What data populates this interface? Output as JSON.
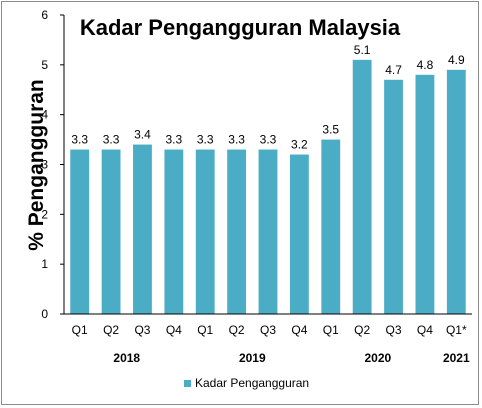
{
  "chart_data": {
    "type": "bar",
    "title": "Kadar Pengangguran Malaysia",
    "ylabel": "% Pengangguran",
    "xlabel": "",
    "ylim": [
      0,
      6
    ],
    "yticks": [
      "0",
      "1",
      "2",
      "3",
      "4",
      "5",
      "6"
    ],
    "grid": false,
    "legend_position": "bottom-left",
    "categories": [
      "Q1",
      "Q2",
      "Q3",
      "Q4",
      "Q1",
      "Q2",
      "Q3",
      "Q4",
      "Q1",
      "Q2",
      "Q3",
      "Q4",
      "Q1*"
    ],
    "year_groups": [
      {
        "label": "2018",
        "start": 0,
        "end": 3
      },
      {
        "label": "2019",
        "start": 4,
        "end": 7
      },
      {
        "label": "2020",
        "start": 8,
        "end": 11
      },
      {
        "label": "2021",
        "start": 12,
        "end": 12
      }
    ],
    "series": [
      {
        "name": "Kadar Pengangguran",
        "color": "#4bacc6",
        "values": [
          3.3,
          3.3,
          3.4,
          3.3,
          3.3,
          3.3,
          3.3,
          3.2,
          3.5,
          5.1,
          4.7,
          4.8,
          4.9
        ],
        "data_labels": [
          "3.3",
          "3.3",
          "3.4",
          "3.3",
          "3.3",
          "3.3",
          "3.3",
          "3.2",
          "3.5",
          "5.1",
          "4.7",
          "4.8",
          "4.9"
        ]
      }
    ]
  }
}
